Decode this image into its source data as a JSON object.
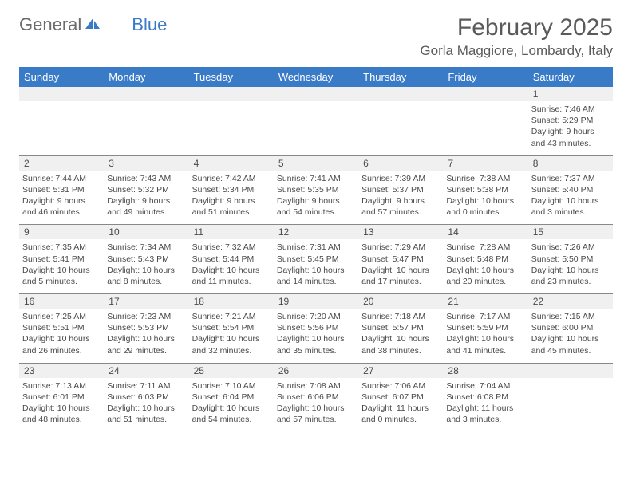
{
  "logo": {
    "text1": "General",
    "text2": "Blue"
  },
  "header": {
    "month": "February 2025",
    "location": "Gorla Maggiore, Lombardy, Italy"
  },
  "colors": {
    "brand_blue": "#3a7bc8",
    "text_gray": "#5a5a5a",
    "strip_bg": "#f0f0f0",
    "border": "#888888"
  },
  "daynames": [
    "Sunday",
    "Monday",
    "Tuesday",
    "Wednesday",
    "Thursday",
    "Friday",
    "Saturday"
  ],
  "weeks": [
    {
      "start": 0,
      "cells": [
        null,
        null,
        null,
        null,
        null,
        null,
        {
          "n": "1",
          "sr": "Sunrise: 7:46 AM",
          "ss": "Sunset: 5:29 PM",
          "d1": "Daylight: 9 hours",
          "d2": "and 43 minutes."
        }
      ]
    },
    {
      "start": 2,
      "cells": [
        {
          "n": "2",
          "sr": "Sunrise: 7:44 AM",
          "ss": "Sunset: 5:31 PM",
          "d1": "Daylight: 9 hours",
          "d2": "and 46 minutes."
        },
        {
          "n": "3",
          "sr": "Sunrise: 7:43 AM",
          "ss": "Sunset: 5:32 PM",
          "d1": "Daylight: 9 hours",
          "d2": "and 49 minutes."
        },
        {
          "n": "4",
          "sr": "Sunrise: 7:42 AM",
          "ss": "Sunset: 5:34 PM",
          "d1": "Daylight: 9 hours",
          "d2": "and 51 minutes."
        },
        {
          "n": "5",
          "sr": "Sunrise: 7:41 AM",
          "ss": "Sunset: 5:35 PM",
          "d1": "Daylight: 9 hours",
          "d2": "and 54 minutes."
        },
        {
          "n": "6",
          "sr": "Sunrise: 7:39 AM",
          "ss": "Sunset: 5:37 PM",
          "d1": "Daylight: 9 hours",
          "d2": "and 57 minutes."
        },
        {
          "n": "7",
          "sr": "Sunrise: 7:38 AM",
          "ss": "Sunset: 5:38 PM",
          "d1": "Daylight: 10 hours",
          "d2": "and 0 minutes."
        },
        {
          "n": "8",
          "sr": "Sunrise: 7:37 AM",
          "ss": "Sunset: 5:40 PM",
          "d1": "Daylight: 10 hours",
          "d2": "and 3 minutes."
        }
      ]
    },
    {
      "start": 9,
      "cells": [
        {
          "n": "9",
          "sr": "Sunrise: 7:35 AM",
          "ss": "Sunset: 5:41 PM",
          "d1": "Daylight: 10 hours",
          "d2": "and 5 minutes."
        },
        {
          "n": "10",
          "sr": "Sunrise: 7:34 AM",
          "ss": "Sunset: 5:43 PM",
          "d1": "Daylight: 10 hours",
          "d2": "and 8 minutes."
        },
        {
          "n": "11",
          "sr": "Sunrise: 7:32 AM",
          "ss": "Sunset: 5:44 PM",
          "d1": "Daylight: 10 hours",
          "d2": "and 11 minutes."
        },
        {
          "n": "12",
          "sr": "Sunrise: 7:31 AM",
          "ss": "Sunset: 5:45 PM",
          "d1": "Daylight: 10 hours",
          "d2": "and 14 minutes."
        },
        {
          "n": "13",
          "sr": "Sunrise: 7:29 AM",
          "ss": "Sunset: 5:47 PM",
          "d1": "Daylight: 10 hours",
          "d2": "and 17 minutes."
        },
        {
          "n": "14",
          "sr": "Sunrise: 7:28 AM",
          "ss": "Sunset: 5:48 PM",
          "d1": "Daylight: 10 hours",
          "d2": "and 20 minutes."
        },
        {
          "n": "15",
          "sr": "Sunrise: 7:26 AM",
          "ss": "Sunset: 5:50 PM",
          "d1": "Daylight: 10 hours",
          "d2": "and 23 minutes."
        }
      ]
    },
    {
      "start": 16,
      "cells": [
        {
          "n": "16",
          "sr": "Sunrise: 7:25 AM",
          "ss": "Sunset: 5:51 PM",
          "d1": "Daylight: 10 hours",
          "d2": "and 26 minutes."
        },
        {
          "n": "17",
          "sr": "Sunrise: 7:23 AM",
          "ss": "Sunset: 5:53 PM",
          "d1": "Daylight: 10 hours",
          "d2": "and 29 minutes."
        },
        {
          "n": "18",
          "sr": "Sunrise: 7:21 AM",
          "ss": "Sunset: 5:54 PM",
          "d1": "Daylight: 10 hours",
          "d2": "and 32 minutes."
        },
        {
          "n": "19",
          "sr": "Sunrise: 7:20 AM",
          "ss": "Sunset: 5:56 PM",
          "d1": "Daylight: 10 hours",
          "d2": "and 35 minutes."
        },
        {
          "n": "20",
          "sr": "Sunrise: 7:18 AM",
          "ss": "Sunset: 5:57 PM",
          "d1": "Daylight: 10 hours",
          "d2": "and 38 minutes."
        },
        {
          "n": "21",
          "sr": "Sunrise: 7:17 AM",
          "ss": "Sunset: 5:59 PM",
          "d1": "Daylight: 10 hours",
          "d2": "and 41 minutes."
        },
        {
          "n": "22",
          "sr": "Sunrise: 7:15 AM",
          "ss": "Sunset: 6:00 PM",
          "d1": "Daylight: 10 hours",
          "d2": "and 45 minutes."
        }
      ]
    },
    {
      "start": 23,
      "cells": [
        {
          "n": "23",
          "sr": "Sunrise: 7:13 AM",
          "ss": "Sunset: 6:01 PM",
          "d1": "Daylight: 10 hours",
          "d2": "and 48 minutes."
        },
        {
          "n": "24",
          "sr": "Sunrise: 7:11 AM",
          "ss": "Sunset: 6:03 PM",
          "d1": "Daylight: 10 hours",
          "d2": "and 51 minutes."
        },
        {
          "n": "25",
          "sr": "Sunrise: 7:10 AM",
          "ss": "Sunset: 6:04 PM",
          "d1": "Daylight: 10 hours",
          "d2": "and 54 minutes."
        },
        {
          "n": "26",
          "sr": "Sunrise: 7:08 AM",
          "ss": "Sunset: 6:06 PM",
          "d1": "Daylight: 10 hours",
          "d2": "and 57 minutes."
        },
        {
          "n": "27",
          "sr": "Sunrise: 7:06 AM",
          "ss": "Sunset: 6:07 PM",
          "d1": "Daylight: 11 hours",
          "d2": "and 0 minutes."
        },
        {
          "n": "28",
          "sr": "Sunrise: 7:04 AM",
          "ss": "Sunset: 6:08 PM",
          "d1": "Daylight: 11 hours",
          "d2": "and 3 minutes."
        },
        null
      ]
    }
  ]
}
